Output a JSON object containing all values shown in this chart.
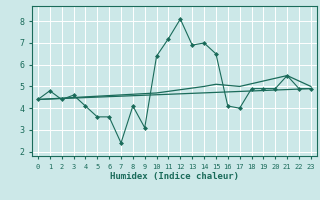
{
  "xlabel": "Humidex (Indice chaleur)",
  "ylabel": "",
  "bg_color": "#cce8e8",
  "grid_color": "#ffffff",
  "line_color": "#1a6b5a",
  "xlim": [
    -0.5,
    23.5
  ],
  "ylim": [
    1.8,
    8.7
  ],
  "yticks": [
    2,
    3,
    4,
    5,
    6,
    7,
    8
  ],
  "xticks": [
    0,
    1,
    2,
    3,
    4,
    5,
    6,
    7,
    8,
    9,
    10,
    11,
    12,
    13,
    14,
    15,
    16,
    17,
    18,
    19,
    20,
    21,
    22,
    23
  ],
  "series1_x": [
    0,
    1,
    2,
    3,
    4,
    5,
    6,
    7,
    8,
    9,
    10,
    11,
    12,
    13,
    14,
    15,
    16,
    17,
    18,
    19,
    20,
    21,
    22,
    23
  ],
  "series1_y": [
    4.4,
    4.8,
    4.4,
    4.6,
    4.1,
    3.6,
    3.6,
    2.4,
    4.1,
    3.1,
    6.4,
    7.2,
    8.1,
    6.9,
    7.0,
    6.5,
    4.1,
    4.0,
    4.9,
    4.9,
    4.9,
    5.5,
    4.9,
    4.9
  ],
  "series2_x": [
    0,
    23
  ],
  "series2_y": [
    4.4,
    4.9
  ],
  "series3_x": [
    0,
    10,
    14,
    15,
    17,
    21,
    23
  ],
  "series3_y": [
    4.4,
    4.7,
    5.0,
    5.1,
    5.0,
    5.5,
    5.0
  ]
}
